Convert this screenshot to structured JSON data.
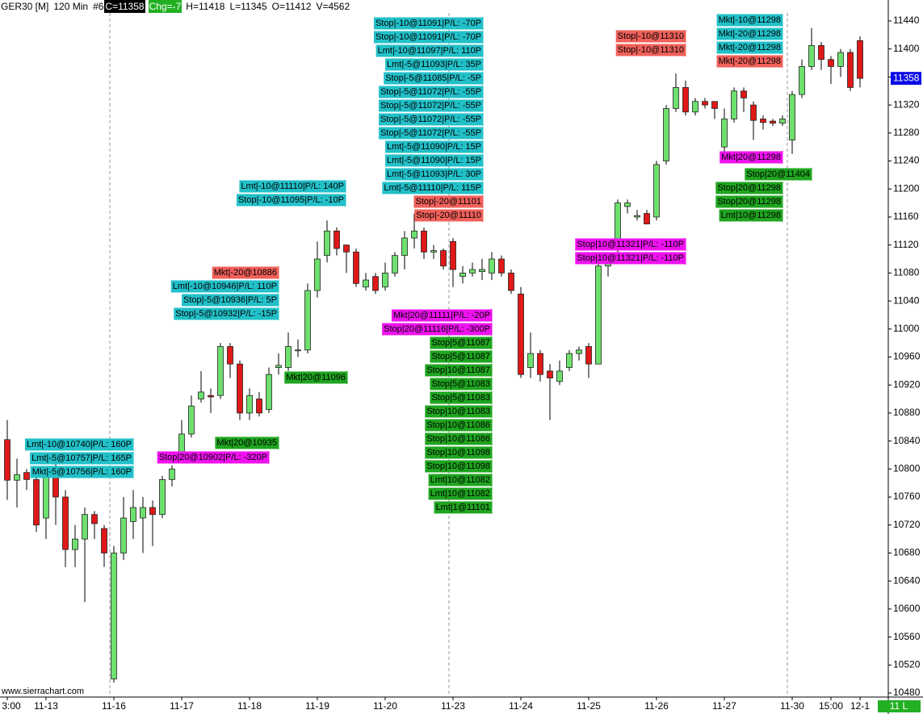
{
  "chart_data": {
    "type": "candlestick",
    "header": {
      "symbol": "GER30 [M]",
      "period": "120 Min",
      "chart_number": "#6",
      "close": "C=11358",
      "change": "Chg=-7",
      "high": "H=11418",
      "low": "L=11345",
      "open": "O=11412",
      "volume": "V=4562"
    },
    "watermark": "www.sierrachart.com",
    "status": "11 L",
    "last_price": 11358,
    "up_color": "#6ee06e",
    "down_color": "#e01818",
    "ylim": [
      10480,
      11440
    ],
    "yticks": [
      10480,
      10520,
      10560,
      10600,
      10640,
      10680,
      10720,
      10760,
      10800,
      10840,
      10880,
      10920,
      10960,
      11000,
      11040,
      11080,
      11120,
      11160,
      11200,
      11240,
      11280,
      11320,
      11360,
      11400,
      11440
    ],
    "categories": [
      "3:00",
      null,
      null,
      null,
      "11-13",
      null,
      null,
      null,
      null,
      null,
      null,
      "11-16",
      null,
      null,
      null,
      null,
      null,
      null,
      "11-17",
      null,
      null,
      null,
      null,
      null,
      null,
      "11-18",
      null,
      null,
      null,
      null,
      null,
      null,
      "11-19",
      null,
      null,
      null,
      null,
      null,
      null,
      "11-20",
      null,
      null,
      null,
      null,
      null,
      null,
      "11-23",
      null,
      null,
      null,
      null,
      null,
      null,
      "11-24",
      null,
      null,
      null,
      null,
      null,
      null,
      "11-25",
      null,
      null,
      null,
      null,
      null,
      null,
      "11-26",
      null,
      null,
      null,
      null,
      null,
      null,
      "11-27",
      null,
      null,
      null,
      null,
      null,
      null,
      "11-30",
      null,
      null,
      null,
      "15:00",
      null,
      null,
      "12-1"
    ],
    "open": [
      10842,
      10784,
      10795,
      10785,
      10730,
      10800,
      10760,
      10685,
      10700,
      10735,
      10715,
      10500,
      10680,
      10725,
      10730,
      10745,
      10735,
      10785,
      10815,
      10850,
      10900,
      10905,
      10905,
      10975,
      10950,
      10880,
      10900,
      10885,
      10945,
      10945,
      10970,
      10970,
      11055,
      11105,
      11140,
      11120,
      11110,
      11060,
      11075,
      11060,
      11080,
      11105,
      11130,
      11140,
      11110,
      11112,
      11125,
      11075,
      11080,
      11082,
      11080,
      11100,
      11080,
      11050,
      10945,
      10965,
      10940,
      10925,
      10945,
      10965,
      10975,
      10950,
      11090,
      11115,
      11175,
      11160,
      11165,
      11160,
      11240,
      11315,
      11345,
      11310,
      11325,
      11325,
      11260,
      11300,
      11340,
      11320,
      11300,
      11297,
      11294,
      11270,
      11335,
      11375,
      11405,
      11385,
      11375,
      11395,
      11412
    ],
    "high": [
      10870,
      10815,
      10800,
      10790,
      10800,
      10810,
      10770,
      10720,
      10745,
      10740,
      10720,
      10690,
      10760,
      10770,
      10760,
      10755,
      10790,
      10805,
      10870,
      10905,
      10940,
      10915,
      10980,
      10980,
      10955,
      10915,
      10910,
      10945,
      10965,
      10995,
      10985,
      11065,
      11125,
      11155,
      11145,
      11120,
      11115,
      11080,
      11080,
      11095,
      11110,
      11140,
      11165,
      11145,
      11120,
      11115,
      11130,
      11090,
      11095,
      11100,
      11110,
      11105,
      11085,
      11060,
      10995,
      10970,
      10950,
      10955,
      10970,
      10975,
      10980,
      11095,
      11100,
      11185,
      11185,
      11170,
      11170,
      11240,
      11320,
      11365,
      11355,
      11330,
      11330,
      11325,
      11315,
      11345,
      11345,
      11325,
      11305,
      11300,
      11305,
      11340,
      11385,
      11430,
      11410,
      11390,
      11400,
      11400,
      11418
    ],
    "low": [
      10756,
      10745,
      10770,
      10710,
      10700,
      10720,
      10660,
      10660,
      10610,
      10700,
      10660,
      10495,
      10670,
      10700,
      10680,
      10690,
      10730,
      10775,
      10810,
      10845,
      10895,
      10880,
      10900,
      10930,
      10870,
      10870,
      10875,
      10880,
      10935,
      10940,
      10960,
      10965,
      11045,
      11095,
      11105,
      11080,
      11060,
      11055,
      11050,
      11055,
      11075,
      11085,
      11115,
      11100,
      11100,
      11085,
      11060,
      11065,
      11075,
      11070,
      11070,
      11075,
      11050,
      10930,
      10930,
      10925,
      10870,
      10920,
      10940,
      10955,
      10930,
      10950,
      11075,
      11110,
      11165,
      11155,
      11150,
      11155,
      11235,
      11310,
      11305,
      11305,
      11315,
      11300,
      11250,
      11295,
      11310,
      11270,
      11285,
      11290,
      11290,
      11250,
      11330,
      11370,
      11370,
      11350,
      11360,
      11340,
      11345
    ],
    "close": [
      10784,
      10792,
      10785,
      10720,
      10790,
      10760,
      10685,
      10700,
      10735,
      10722,
      10680,
      10680,
      10730,
      10745,
      10745,
      10735,
      10785,
      10800,
      10850,
      10890,
      10910,
      10903,
      10975,
      10950,
      10880,
      10905,
      10880,
      10935,
      10948,
      10975,
      10970,
      11055,
      11100,
      11140,
      11115,
      11110,
      11065,
      11070,
      11055,
      11080,
      11105,
      11130,
      11140,
      11110,
      11112,
      11090,
      11085,
      11080,
      11085,
      11085,
      11100,
      11080,
      11055,
      10935,
      10965,
      10935,
      10930,
      10940,
      10965,
      10970,
      10950,
      11090,
      11095,
      11180,
      11180,
      11162,
      11150,
      11235,
      11315,
      11345,
      11310,
      11325,
      11320,
      11315,
      11300,
      11340,
      11330,
      11298,
      11295,
      11294,
      11300,
      11335,
      11375,
      11405,
      11385,
      11375,
      11395,
      11345,
      11358
    ],
    "annotations": [
      {
        "items": [
          {
            "text": "Lmt|-10@10740|P/L: 160P",
            "color": "#22c0c8"
          },
          {
            "text": "Lmt|-5@10757|P/L: 165P",
            "color": "#22c0c8"
          },
          {
            "text": "Mkt|-5@10756|P/L: 160P",
            "color": "#22c0c8"
          }
        ]
      },
      {
        "items": [
          {
            "text": "Stop|20@10902|P/L: -320P",
            "color": "#ee12ee"
          }
        ]
      },
      {
        "items": [
          {
            "text": "Mkt|20@10935",
            "color": "#1fa51f"
          }
        ]
      },
      {
        "items": [
          {
            "text": "Mkt|-20@10886",
            "color": "#f0605a"
          },
          {
            "text": "Lmt|-10@10946|P/L: 110P",
            "color": "#22c0c8"
          },
          {
            "text": "Stop|-5@10936|P/L: 5P",
            "color": "#22c0c8"
          },
          {
            "text": "Stop|-5@10932|P/L: -15P",
            "color": "#22c0c8"
          }
        ]
      },
      {
        "items": [
          {
            "text": "Mkt|20@11096",
            "color": "#1fa51f"
          }
        ]
      },
      {
        "items": [
          {
            "text": "Lmt|-10@11110|P/L: 140P",
            "color": "#22c0c8"
          },
          {
            "text": "Stop|-10@11095|P/L: -10P",
            "color": "#22c0c8"
          }
        ]
      },
      {
        "items": [
          {
            "text": "Stop|-10@11091|P/L: -70P",
            "color": "#22c0c8"
          },
          {
            "text": "Stop|-10@11091|P/L: -70P",
            "color": "#22c0c8"
          },
          {
            "text": "Lmt|-10@11097|P/L: 110P",
            "color": "#22c0c8"
          },
          {
            "text": "Lmt|-5@11093|P/L: 35P",
            "color": "#22c0c8"
          },
          {
            "text": "Stop|-5@11085|P/L: -5P",
            "color": "#22c0c8"
          },
          {
            "text": "Stop|-5@11072|P/L: -55P",
            "color": "#22c0c8"
          },
          {
            "text": "Stop|-5@11072|P/L: -55P",
            "color": "#22c0c8"
          },
          {
            "text": "Stop|-5@11072|P/L: -55P",
            "color": "#22c0c8"
          },
          {
            "text": "Stop|-5@11072|P/L: -55P",
            "color": "#22c0c8"
          },
          {
            "text": "Lmt|-5@11090|P/L: 15P",
            "color": "#22c0c8"
          },
          {
            "text": "Lmt|-5@11090|P/L: 15P",
            "color": "#22c0c8"
          },
          {
            "text": "Lmt|-5@11093|P/L: 30P",
            "color": "#22c0c8"
          },
          {
            "text": "Lmt|-5@11110|P/L: 115P",
            "color": "#22c0c8"
          },
          {
            "text": "Stop|-20@11101",
            "color": "#f0605a"
          },
          {
            "text": "Stop|-20@11110",
            "color": "#f0605a"
          }
        ]
      },
      {
        "items": [
          {
            "text": "Mkt|20@11111|P/L: -20P",
            "color": "#ee12ee"
          },
          {
            "text": "Stop|20@11116|P/L: -300P",
            "color": "#ee12ee"
          },
          {
            "text": "Stop|5@11087",
            "color": "#1fa51f"
          },
          {
            "text": "Stop|5@11087",
            "color": "#1fa51f"
          },
          {
            "text": "Stop|10@11087",
            "color": "#1fa51f"
          },
          {
            "text": "Stop|5@11083",
            "color": "#1fa51f"
          },
          {
            "text": "Stop|5@11083",
            "color": "#1fa51f"
          },
          {
            "text": "Stop|10@11083",
            "color": "#1fa51f"
          },
          {
            "text": "Stop|10@11086",
            "color": "#1fa51f"
          },
          {
            "text": "Stop|10@11086",
            "color": "#1fa51f"
          },
          {
            "text": "Stop|10@11098",
            "color": "#1fa51f"
          },
          {
            "text": "Stop|10@11098",
            "color": "#1fa51f"
          },
          {
            "text": "Lmt|10@11082",
            "color": "#1fa51f"
          },
          {
            "text": "Lmt|10@11082",
            "color": "#1fa51f"
          },
          {
            "text": "Lmt|1@11101",
            "color": "#1fa51f"
          }
        ]
      },
      {
        "items": [
          {
            "text": "Stop|-10@11310",
            "color": "#f0605a"
          },
          {
            "text": "Stop|-10@11310",
            "color": "#f0605a"
          }
        ]
      },
      {
        "items": [
          {
            "text": "Stop|10@11321|P/L: -110P",
            "color": "#ee12ee"
          },
          {
            "text": "Stop|10@11321|P/L: -110P",
            "color": "#ee12ee"
          }
        ]
      },
      {
        "items": [
          {
            "text": "Mkt|-10@11298",
            "color": "#22c0c8"
          },
          {
            "text": "Mkt|-20@11298",
            "color": "#22c0c8"
          },
          {
            "text": "Mkt|-20@11298",
            "color": "#22c0c8"
          },
          {
            "text": "Mkt|-20@11298",
            "color": "#f0605a"
          }
        ]
      },
      {
        "items": [
          {
            "text": "Mkt|20@11298",
            "color": "#ee12ee"
          }
        ]
      },
      {
        "items": [
          {
            "text": "Stop|20@11404",
            "color": "#1fa51f"
          }
        ]
      },
      {
        "items": [
          {
            "text": "Stop|20@11298",
            "color": "#1fa51f"
          },
          {
            "text": "Stop|20@11298",
            "color": "#1fa51f"
          },
          {
            "text": "Lmt|10@11298",
            "color": "#1fa51f"
          }
        ]
      }
    ]
  }
}
